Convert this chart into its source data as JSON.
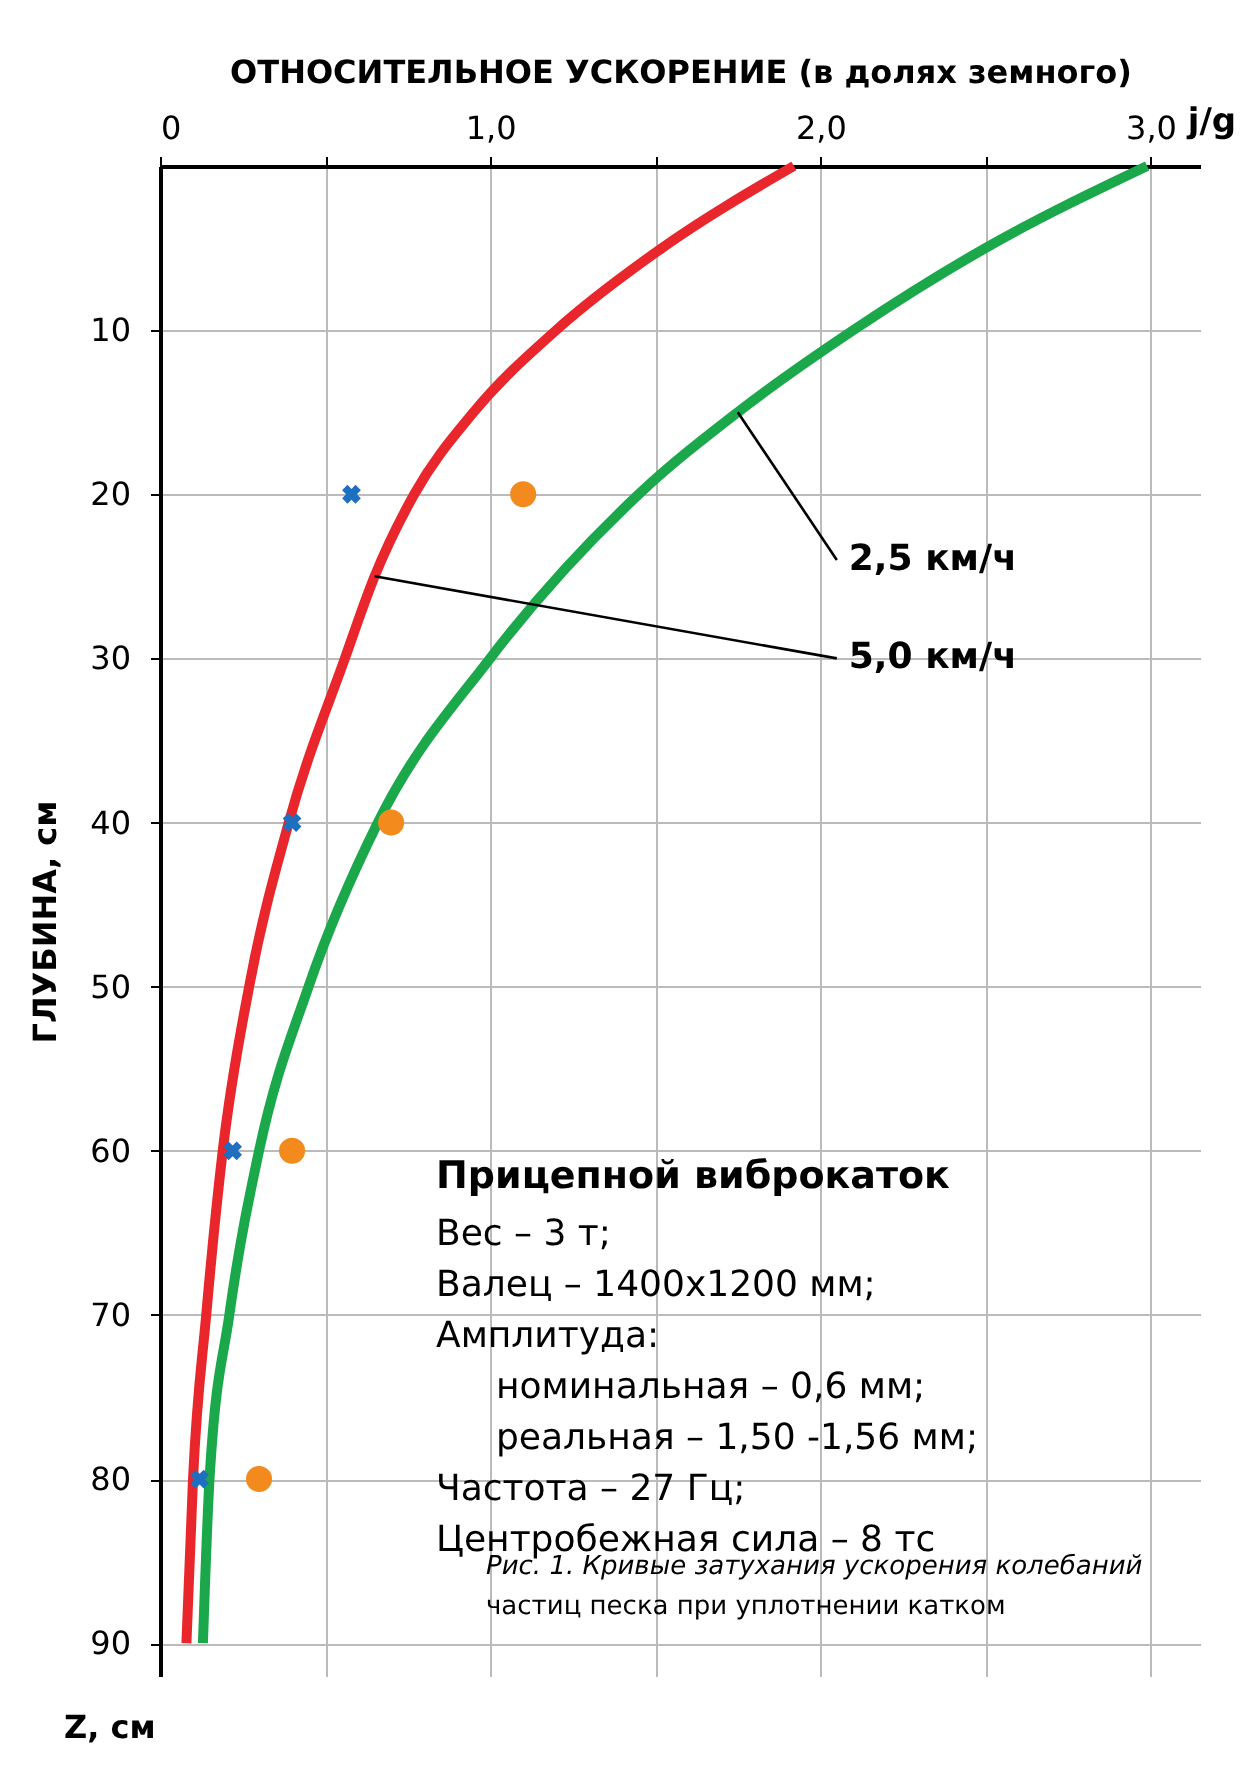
{
  "chart_data": {
    "type": "line",
    "xlabel": "ОТНОСИТЕЛЬНОЕ УСКОРЕНИЕ (в долях земного)",
    "ylabel": "ГЛУБИНА, см",
    "xlim": [
      0,
      3.15
    ],
    "ylim": [
      92,
      0
    ],
    "xticks": [
      0,
      {
        "value": 0.5,
        "label": null
      },
      {
        "value": 1,
        "label": "1,0"
      },
      {
        "value": 1.5,
        "label": null
      },
      {
        "value": 2,
        "label": "2,0"
      },
      {
        "value": 2.5,
        "label": null
      },
      {
        "value": 3,
        "label": "3,0"
      }
    ],
    "yticks": [
      10,
      20,
      30,
      40,
      50,
      60,
      70,
      80,
      90
    ],
    "grid": true,
    "series": [
      {
        "name": "2,5 км/ч",
        "line_style": "solid",
        "color": "#1aa84a",
        "x": [
          2.99,
          2.5,
          2.1,
          1.75,
          1.45,
          1.0,
          0.66,
          0.45,
          0.3,
          0.21,
          0.15,
          0.13
        ],
        "values": [
          0,
          5,
          10,
          15,
          20,
          30,
          40,
          50,
          60,
          70,
          80,
          90
        ]
      },
      {
        "name": "5,0 км/ч",
        "line_style": "solid",
        "color": "#e8262b",
        "x": [
          1.92,
          1.52,
          1.2,
          0.95,
          0.77,
          0.65,
          0.56,
          0.39,
          0.27,
          0.19,
          0.14,
          0.1,
          0.08
        ],
        "values": [
          0,
          5,
          10,
          15,
          20,
          25,
          30,
          40,
          50,
          60,
          70,
          80,
          90
        ]
      },
      {
        "type": "scatter",
        "marker": "cross",
        "color": "#1f6fc0",
        "x": [
          0.58,
          0.4,
          0.22,
          0.12
        ],
        "values": [
          20,
          40,
          60,
          80
        ]
      },
      {
        "type": "scatter",
        "marker": "circle",
        "color": "#f28a1e",
        "x": [
          1.1,
          0.7,
          0.4,
          0.3
        ],
        "values": [
          20,
          40,
          60,
          80
        ]
      }
    ],
    "annotations": [
      "j/g",
      "Z, см",
      "Прицепной виброкаток",
      "Вес – 3 т;",
      "Валец – 1400x1200 мм;",
      "Амплитуда:",
      "номинальная – 0,6 мм;",
      "реальная – 1,50 -1,56 мм;",
      "Частота – 27 Гц;",
      "Центробежная сила – 8 тс",
      "Рис. 1. Кривые затухания ускорения колебаний частиц песка при уплотнении катком"
    ]
  }
}
